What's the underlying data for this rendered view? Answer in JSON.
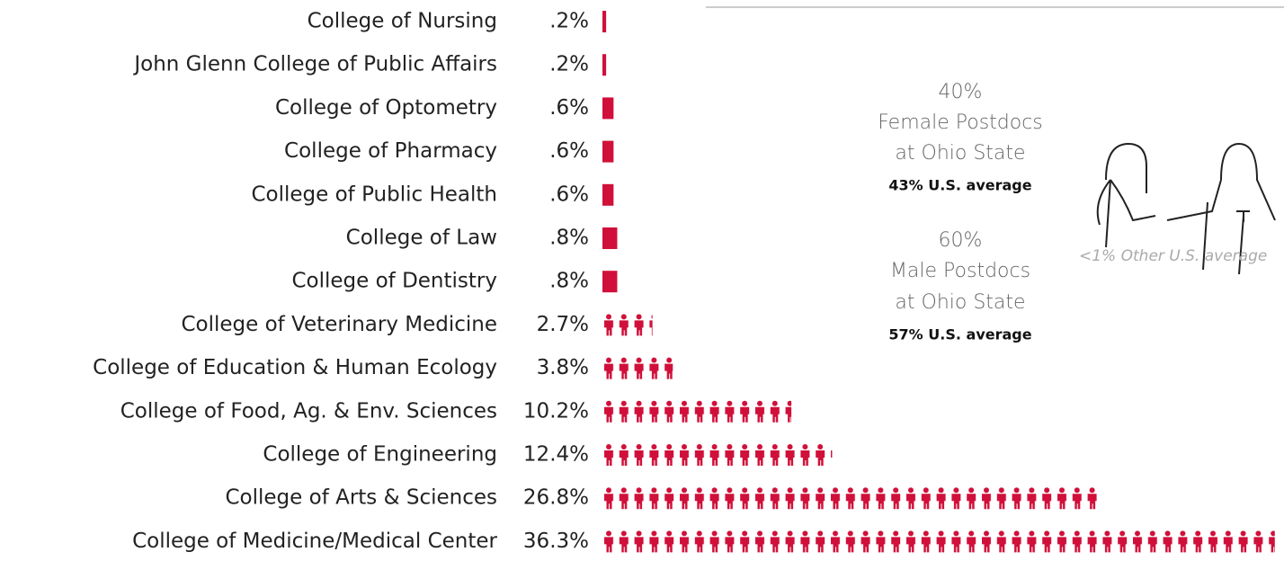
{
  "chart_data": {
    "type": "pictogram",
    "categories": [
      "College of Nursing",
      "John Glenn College of Public Affairs",
      "College of Optometry",
      "College of Pharmacy",
      "College of Public Health",
      "College of Law",
      "College of Dentistry",
      "College of Veterinary Medicine",
      "College of Education & Human Ecology",
      "College of Food, Ag. & Env. Sciences",
      "College of Engineering",
      "College of Arts & Sciences",
      "College of Medicine/Medical Center"
    ],
    "values": [
      0.2,
      0.2,
      0.6,
      0.6,
      0.6,
      0.8,
      0.8,
      2.7,
      3.8,
      10.2,
      12.4,
      26.8,
      36.3
    ],
    "value_labels": [
      ".2%",
      ".2%",
      ".6%",
      ".6%",
      ".6%",
      ".8%",
      ".8%",
      "2.7%",
      "3.8%",
      "10.2%",
      "12.4%",
      "26.8%",
      "36.3%"
    ],
    "color": "#d0103a"
  },
  "panel": {
    "female": {
      "share": "40%",
      "label": "Female Postdocs",
      "place": "at Ohio State",
      "us": "43% U.S. average"
    },
    "male": {
      "share": "60%",
      "label": "Male Postdocs",
      "place": "at Ohio State",
      "us": "57% U.S. average"
    },
    "other": "<1% Other U.S. average"
  }
}
